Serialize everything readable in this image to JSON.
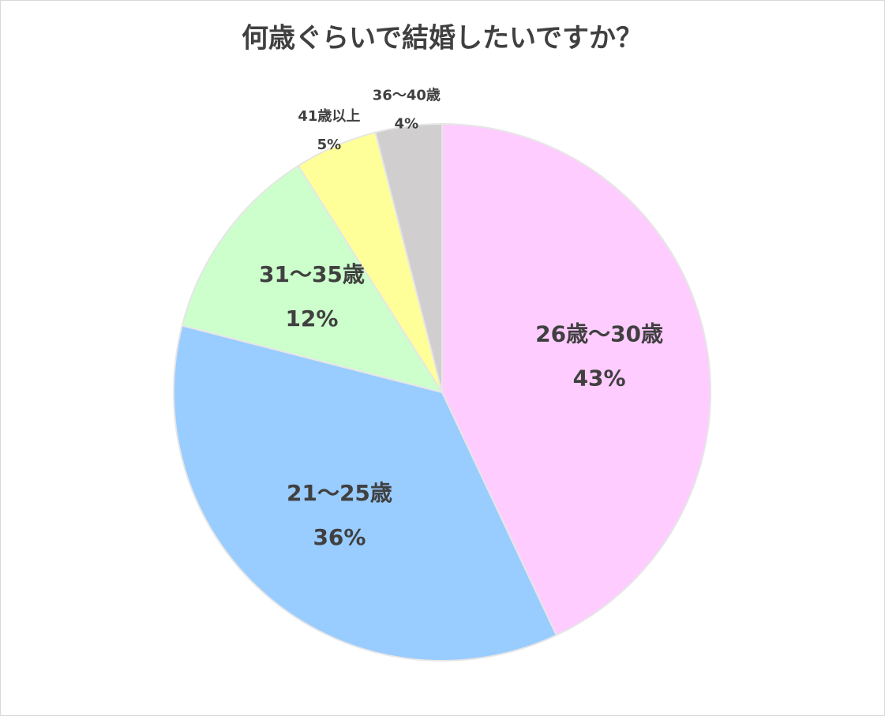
{
  "chart_data": {
    "type": "pie",
    "title": "何歳ぐらいで結婚したいですか？",
    "categories": [
      "26歳～30歳",
      "21～25歳",
      "31～35歳",
      "41歳以上",
      "36～40歳"
    ],
    "values": [
      43,
      36,
      12,
      5,
      4
    ],
    "value_labels": [
      "43%",
      "36%",
      "12%",
      "5%",
      "4%"
    ],
    "colors": [
      "#ffccff",
      "#99ccff",
      "#ccffcc",
      "#ffff99",
      "#d0cece"
    ]
  }
}
